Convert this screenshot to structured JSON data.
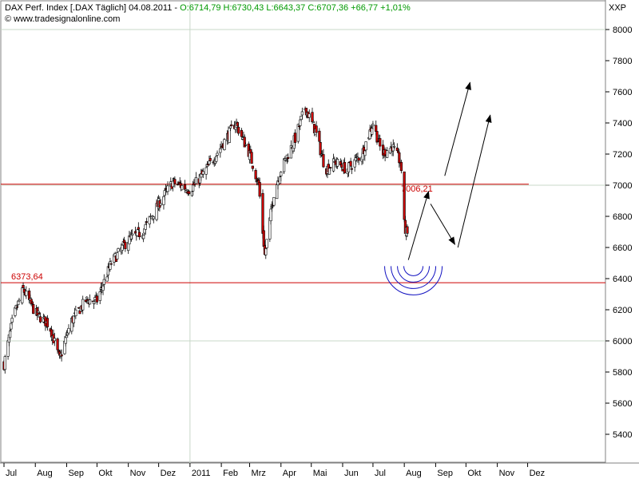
{
  "header": {
    "instrument": "DAX Perf. Index [.DAX  Täglich] 04.08.2011 - ",
    "ohlc": "O:6714,79 H:6730,43 L:6643,37 C:6707,36 +66,77 +1,01%",
    "source": "© www.tradesignalonline.com",
    "unit": "XXP"
  },
  "colors": {
    "up": "#ffffff",
    "down": "#cc0000",
    "level_line": "#cc0000",
    "grid": "#c8d8c8",
    "arc": "#1010c0",
    "change_text": "#009900"
  },
  "chart_data": {
    "type": "candlestick",
    "title": "",
    "ylabel": "",
    "x_tick_labels": [
      "Jul",
      "Aug",
      "Sep",
      "Okt",
      "Nov",
      "Dez",
      "2011",
      "Feb",
      "Mrz",
      "Apr",
      "Mai",
      "Jun",
      "Jul",
      "Aug",
      "Sep",
      "Okt",
      "Nov",
      "Dez"
    ],
    "y_tick_labels": [
      "5400",
      "5600",
      "5800",
      "6000",
      "6200",
      "6400",
      "6600",
      "6800",
      "7000",
      "7200",
      "7400",
      "7600",
      "7800",
      "8000"
    ],
    "ylim": [
      5250,
      8100
    ],
    "y_ticks": [
      5400,
      5600,
      5800,
      6000,
      6200,
      6400,
      6600,
      6800,
      7000,
      7200,
      7400,
      7600,
      7800,
      8000
    ],
    "grid": {
      "horizontal_at": [
        6000,
        7000,
        8000
      ],
      "vertical_at": "2011"
    },
    "levels": [
      {
        "label": "6373,64",
        "value": 6373.64
      },
      {
        "label": "7006,21",
        "value": 7006.21
      }
    ],
    "close_path": [
      {
        "x": "2010-07-01",
        "y": 5850
      },
      {
        "x": "2010-07-10",
        "y": 6150
      },
      {
        "x": "2010-07-20",
        "y": 6330
      },
      {
        "x": "2010-08-01",
        "y": 6180
      },
      {
        "x": "2010-08-15",
        "y": 6100
      },
      {
        "x": "2010-08-25",
        "y": 5880
      },
      {
        "x": "2010-09-05",
        "y": 6120
      },
      {
        "x": "2010-09-20",
        "y": 6260
      },
      {
        "x": "2010-10-01",
        "y": 6260
      },
      {
        "x": "2010-10-15",
        "y": 6500
      },
      {
        "x": "2010-11-01",
        "y": 6650
      },
      {
        "x": "2010-11-15",
        "y": 6700
      },
      {
        "x": "2010-12-01",
        "y": 6880
      },
      {
        "x": "2010-12-15",
        "y": 7020
      },
      {
        "x": "2011-01-01",
        "y": 6970
      },
      {
        "x": "2011-01-15",
        "y": 7080
      },
      {
        "x": "2011-02-01",
        "y": 7250
      },
      {
        "x": "2011-02-15",
        "y": 7400
      },
      {
        "x": "2011-03-01",
        "y": 7200
      },
      {
        "x": "2011-03-10",
        "y": 7000
      },
      {
        "x": "2011-03-16",
        "y": 6550
      },
      {
        "x": "2011-03-25",
        "y": 6950
      },
      {
        "x": "2011-04-01",
        "y": 7100
      },
      {
        "x": "2011-04-15",
        "y": 7300
      },
      {
        "x": "2011-04-25",
        "y": 7500
      },
      {
        "x": "2011-05-05",
        "y": 7350
      },
      {
        "x": "2011-05-15",
        "y": 7100
      },
      {
        "x": "2011-05-25",
        "y": 7150
      },
      {
        "x": "2011-06-05",
        "y": 7100
      },
      {
        "x": "2011-06-20",
        "y": 7200
      },
      {
        "x": "2011-07-01",
        "y": 7400
      },
      {
        "x": "2011-07-10",
        "y": 7200
      },
      {
        "x": "2011-07-20",
        "y": 7250
      },
      {
        "x": "2011-07-28",
        "y": 7150
      },
      {
        "x": "2011-08-02",
        "y": 6700
      },
      {
        "x": "2011-08-04",
        "y": 6707
      }
    ],
    "annotations": [
      {
        "type": "arrow",
        "from": {
          "x": "2011-08-05",
          "y": 6520
        },
        "to": {
          "x": "2011-08-25",
          "y": 6960
        }
      },
      {
        "type": "arrow",
        "from": {
          "x": "2011-08-27",
          "y": 6880
        },
        "to": {
          "x": "2011-09-20",
          "y": 6620
        }
      },
      {
        "type": "arrow",
        "from": {
          "x": "2011-09-23",
          "y": 6600
        },
        "to": {
          "x": "2011-10-25",
          "y": 7450
        }
      },
      {
        "type": "arrow",
        "from": {
          "x": "2011-09-10",
          "y": 7060
        },
        "to": {
          "x": "2011-10-05",
          "y": 7660
        }
      },
      {
        "type": "arcs",
        "center": {
          "x": "2011-08-10",
          "y": 6480
        },
        "count": 4
      }
    ]
  }
}
